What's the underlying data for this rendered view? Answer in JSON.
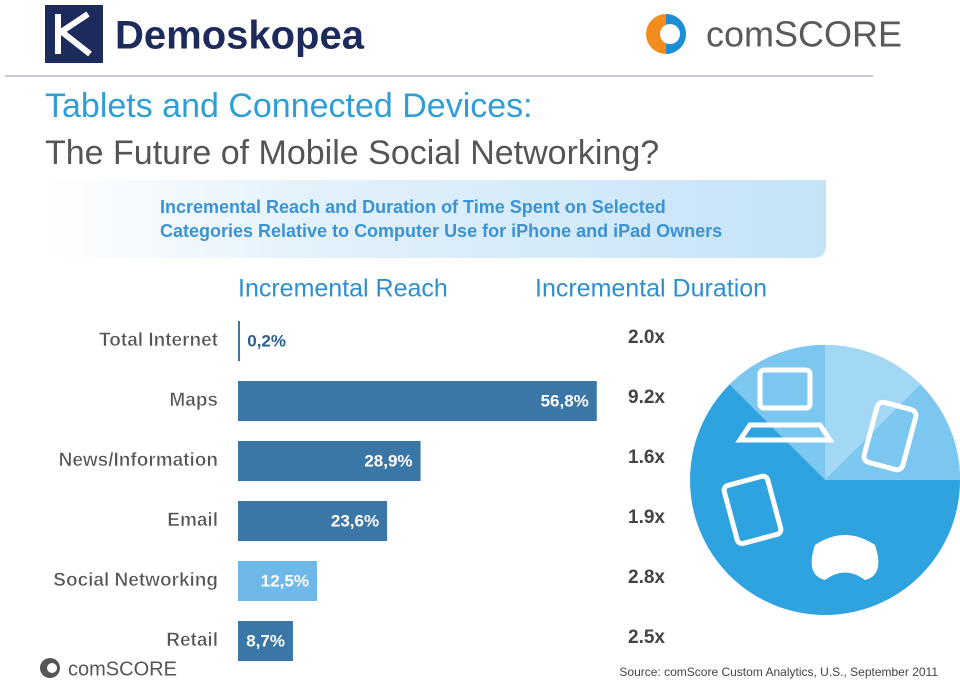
{
  "logos": {
    "left": "Demoskopea",
    "right": "comSCORE",
    "footer": "comSCORE"
  },
  "chart_data": {
    "type": "bar",
    "title_lines": [
      "Tablets and Connected Devices:",
      "The Future of Mobile Social Networking?"
    ],
    "subtitle_lines": [
      "Incremental Reach and Duration of Time Spent on Selected",
      "Categories Relative to Computer Use for iPhone and iPad Owners"
    ],
    "categories": [
      "Total Internet",
      "Maps",
      "News/Information",
      "Email",
      "Social Networking",
      "Retail"
    ],
    "xlim": [
      0,
      60
    ],
    "series": [
      {
        "name": "Incremental Reach",
        "colors": [
          "#3a76a6",
          "#3a76a6",
          "#3a76a6",
          "#3a76a6",
          "#6fb9ea",
          "#3a76a6"
        ],
        "values": [
          0.2,
          56.8,
          28.9,
          23.6,
          12.5,
          8.7
        ],
        "value_labels": [
          "0,2%",
          "56,8%",
          "28,9%",
          "23,6%",
          "12,5%",
          "8,7%"
        ]
      },
      {
        "name": "Incremental Duration",
        "values": [
          2.0,
          9.2,
          1.6,
          1.9,
          2.8,
          2.5
        ],
        "value_labels": [
          "2.0x",
          "9.2x",
          "1.6x",
          "1.9x",
          "2.8x",
          "2.5x"
        ]
      }
    ],
    "source": "Source: comScore Custom Analytics, U.S., September 2011"
  }
}
